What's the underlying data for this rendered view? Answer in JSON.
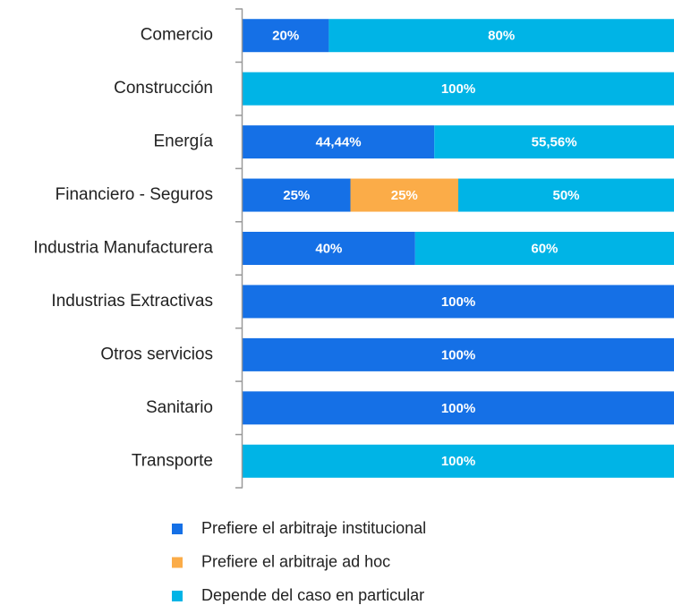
{
  "chart_data": {
    "type": "stacked_barh",
    "categories": [
      "Comercio",
      "Construcción",
      "Energía",
      "Financiero - Seguros",
      "Industria Manufacturera",
      "Industrias Extractivas",
      "Otros servicios",
      "Sanitario",
      "Transporte"
    ],
    "xlim": [
      0,
      100
    ],
    "series": [
      {
        "name": "Prefiere el arbitraje institucional",
        "color": "#1570e6",
        "values": [
          20,
          0,
          44.44,
          25,
          40,
          100,
          100,
          100,
          0
        ],
        "value_labels": [
          "20%",
          null,
          "44,44%",
          "25%",
          "40%",
          "100%",
          "100%",
          "100%",
          null
        ]
      },
      {
        "name": "Prefiere el arbitraje ad hoc",
        "color": "#fbac48",
        "values": [
          0,
          0,
          0,
          25,
          0,
          0,
          0,
          0,
          0
        ],
        "value_labels": [
          null,
          null,
          null,
          "25%",
          null,
          null,
          null,
          null,
          null
        ]
      },
      {
        "name": "Depende del caso en particular",
        "color": "#00b4e6",
        "values": [
          80,
          100,
          55.56,
          50,
          60,
          0,
          0,
          0,
          100
        ],
        "value_labels": [
          "80%",
          "100%",
          "55,56%",
          "50%",
          "60%",
          null,
          null,
          null,
          "100%"
        ]
      }
    ]
  }
}
